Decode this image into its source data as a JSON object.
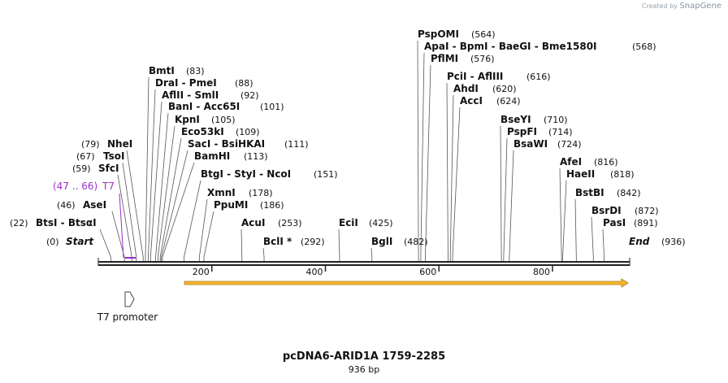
{
  "brand": {
    "prefix": "Created by",
    "name": "SnapGene"
  },
  "title": "pcDNA6-ARID1A 1759-2285",
  "length_label": "936 bp",
  "total_bp": 936,
  "ruler": {
    "ticks": [
      200,
      400,
      600,
      800
    ]
  },
  "enzymes": [
    {
      "name": "PspOMI",
      "pos": 564,
      "label": "PspOMI",
      "num": "(564)"
    },
    {
      "name": "ApaI",
      "pos": 568,
      "label": "ApaI  -  BpmI  -  BaeGI  -  Bme1580I",
      "num": "(568)"
    },
    {
      "name": "PflMI",
      "pos": 576,
      "label": "PflMI",
      "num": "(576)"
    },
    {
      "name": "PciI",
      "pos": 616,
      "label": "PciI  -  AflIII",
      "num": "(616)"
    },
    {
      "name": "AhdI",
      "pos": 620,
      "label": "AhdI",
      "num": "(620)"
    },
    {
      "name": "AccI",
      "pos": 624,
      "label": "AccI",
      "num": "(624)"
    },
    {
      "name": "BmtI",
      "pos": 83,
      "label": "BmtI",
      "num": "(83)"
    },
    {
      "name": "DraI",
      "pos": 88,
      "label": "DraI  -  PmeI",
      "num": "(88)"
    },
    {
      "name": "AflII",
      "pos": 92,
      "label": "AflII  -  SmlI",
      "num": "(92)"
    },
    {
      "name": "BanI",
      "pos": 101,
      "label": "BanI  -  Acc65I",
      "num": "(101)"
    },
    {
      "name": "KpnI",
      "pos": 105,
      "label": "KpnI",
      "num": "(105)"
    },
    {
      "name": "Eco53kI",
      "pos": 109,
      "label": "Eco53kI",
      "num": "(109)"
    },
    {
      "name": "SacI",
      "pos": 111,
      "label": "SacI  -  BsiHKAI",
      "num": "(111)"
    },
    {
      "name": "BamHI",
      "pos": 113,
      "label": "BamHI",
      "num": "(113)"
    },
    {
      "name": "BtgI",
      "pos": 151,
      "label": "BtgI  -  StyI  -  NcoI",
      "num": "(151)"
    },
    {
      "name": "XmnI",
      "pos": 178,
      "label": "XmnI",
      "num": "(178)"
    },
    {
      "name": "PpuMI",
      "pos": 186,
      "label": "PpuMI",
      "num": "(186)"
    },
    {
      "name": "AcuI",
      "pos": 253,
      "label": "AcuI",
      "num": "(253)"
    },
    {
      "name": "BclI",
      "pos": 292,
      "label": "BclI *",
      "num": "(292)"
    },
    {
      "name": "EciI",
      "pos": 425,
      "label": "EciI",
      "num": "(425)"
    },
    {
      "name": "BglI",
      "pos": 482,
      "label": "BglI",
      "num": "(482)"
    },
    {
      "name": "BseYI",
      "pos": 710,
      "label": "BseYI",
      "num": "(710)"
    },
    {
      "name": "PspFI",
      "pos": 714,
      "label": "PspFI",
      "num": "(714)"
    },
    {
      "name": "BsaWI",
      "pos": 724,
      "label": "BsaWI",
      "num": "(724)"
    },
    {
      "name": "AfeI",
      "pos": 816,
      "label": "AfeI",
      "num": "(816)"
    },
    {
      "name": "HaeII",
      "pos": 818,
      "label": "HaeII",
      "num": "(818)"
    },
    {
      "name": "BstBI",
      "pos": 842,
      "label": "BstBI",
      "num": "(842)"
    },
    {
      "name": "BsrDI",
      "pos": 872,
      "label": "BsrDI",
      "num": "(872)"
    },
    {
      "name": "PasI",
      "pos": 891,
      "label": "PasI",
      "num": "(891)"
    },
    {
      "name": "NheI",
      "pos": 79,
      "label": "NheI",
      "num": "(79)"
    },
    {
      "name": "TsoI",
      "pos": 67,
      "label": "TsoI",
      "num": "(67)"
    },
    {
      "name": "SfcI",
      "pos": 59,
      "label": "SfcI",
      "num": "(59)"
    },
    {
      "name": "AseI",
      "pos": 46,
      "label": "AseI",
      "num": "(46)"
    },
    {
      "name": "BtsI",
      "pos": 22,
      "label": "BtsI  -  BtsαI",
      "num": "(22)"
    },
    {
      "name": "Start",
      "pos": 0,
      "label": "Start",
      "num": "(0)"
    },
    {
      "name": "End",
      "pos": 936,
      "label": "End",
      "num": "(936)"
    }
  ],
  "primer": {
    "label": "T7",
    "range": "(47 .. 66)",
    "start": 47,
    "end": 66,
    "color": "#9b30c8"
  },
  "feature_promoter": {
    "label": "T7 promoter",
    "start": 47,
    "end": 66
  },
  "orf": {
    "start": 156,
    "end": 936,
    "fill": "#f5b731",
    "outline": "#b07a10"
  }
}
